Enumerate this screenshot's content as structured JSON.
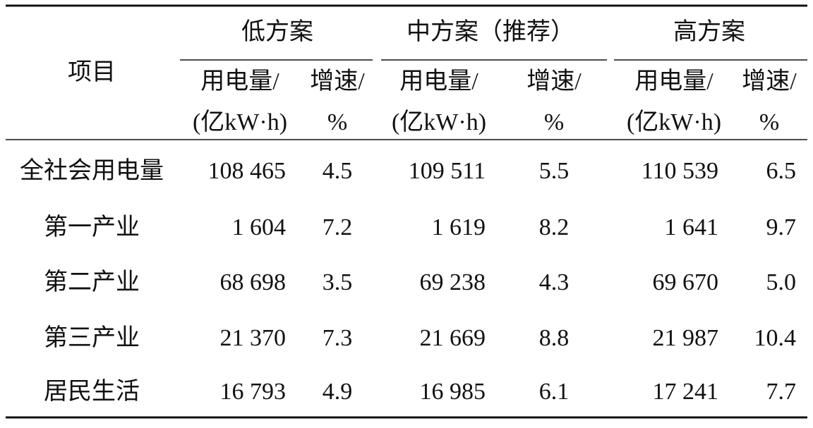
{
  "table": {
    "header": {
      "item": "项目",
      "groups": [
        "低方案",
        "中方案（推荐）",
        "高方案"
      ],
      "columns": [
        [
          "用电量/",
          "(亿kW·h)"
        ],
        [
          "增速/",
          "%"
        ],
        [
          "用电量/",
          "(亿kW·h)"
        ],
        [
          "增速/",
          "%"
        ],
        [
          "用电量/",
          "(亿kW·h)"
        ],
        [
          "增速/",
          "%"
        ]
      ]
    },
    "rows": [
      {
        "label": "全社会用电量",
        "cells": [
          "108 465",
          "4.5",
          "109 511",
          "5.5",
          "110 539",
          "6.5"
        ]
      },
      {
        "label": "第一产业",
        "cells": [
          "1 604",
          "7.2",
          "1 619",
          "8.2",
          "1 641",
          "9.7"
        ]
      },
      {
        "label": "第二产业",
        "cells": [
          "68 698",
          "3.5",
          "69 238",
          "4.3",
          "69 670",
          "5.0"
        ]
      },
      {
        "label": "第三产业",
        "cells": [
          "21 370",
          "7.3",
          "21 669",
          "8.8",
          "21 987",
          "10.4"
        ]
      },
      {
        "label": "居民生活",
        "cells": [
          "16 793",
          "4.9",
          "16 985",
          "6.1",
          "17 241",
          "7.7"
        ]
      }
    ]
  }
}
